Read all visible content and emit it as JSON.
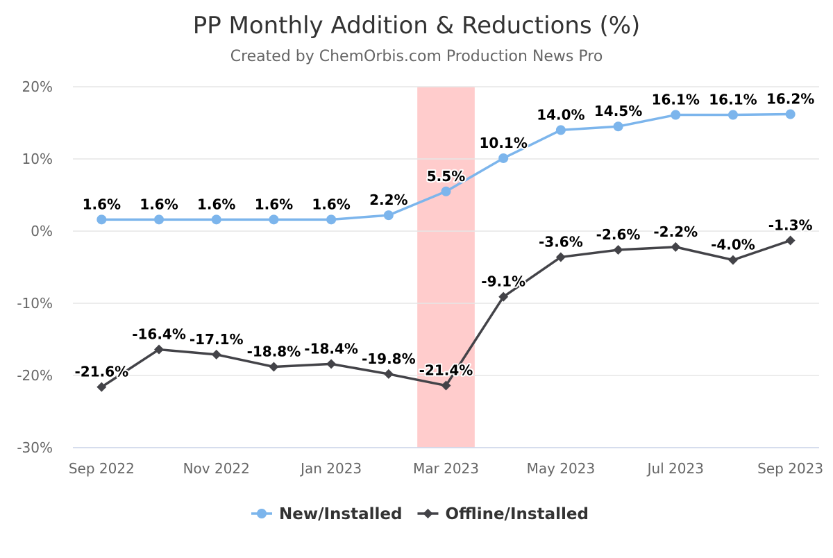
{
  "chart_data": {
    "type": "line",
    "title": "PP Monthly Addition & Reductions (%)",
    "subtitle": "Created by ChemOrbis.com Production News Pro",
    "categories": [
      "Sep 2022",
      "Oct 2022",
      "Nov 2022",
      "Dec 2022",
      "Jan 2023",
      "Feb 2023",
      "Mar 2023",
      "Apr 2023",
      "May 2023",
      "Jun 2023",
      "Jul 2023",
      "Aug 2023",
      "Sep 2023"
    ],
    "x_tick_labels": [
      "Sep 2022",
      "",
      "Nov 2022",
      "",
      "Jan 2023",
      "",
      "Mar 2023",
      "",
      "May 2023",
      "",
      "Jul 2023",
      "",
      "Sep 2023"
    ],
    "ylim": [
      -30,
      20
    ],
    "y_ticks": [
      20,
      10,
      0,
      -10,
      -20,
      -30
    ],
    "y_tick_labels": [
      "20%",
      "10%",
      "0%",
      "-10%",
      "-20%",
      "-30%"
    ],
    "grid": true,
    "legend_position": "bottom-center",
    "highlight_band": {
      "category": "Mar 2023",
      "color": "#ffcccc"
    },
    "series": [
      {
        "name": "New/Installed",
        "color": "#7cb5ec",
        "marker": "circle",
        "values": [
          1.6,
          1.6,
          1.6,
          1.6,
          1.6,
          2.2,
          5.5,
          10.1,
          14.0,
          14.5,
          16.1,
          16.1,
          16.2
        ],
        "labels": [
          "1.6%",
          "1.6%",
          "1.6%",
          "1.6%",
          "1.6%",
          "2.2%",
          "5.5%",
          "10.1%",
          "14.0%",
          "14.5%",
          "16.1%",
          "16.1%",
          "16.2%"
        ]
      },
      {
        "name": "Offline/Installed",
        "color": "#434348",
        "marker": "diamond",
        "values": [
          -21.6,
          -16.4,
          -17.1,
          -18.8,
          -18.4,
          -19.8,
          -21.4,
          -9.1,
          -3.6,
          -2.6,
          -2.2,
          -4.0,
          -1.3
        ],
        "labels": [
          "-21.6%",
          "-16.4%",
          "-17.1%",
          "-18.8%",
          "-18.4%",
          "-19.8%",
          "-21.4%",
          "-9.1%",
          "-3.6%",
          "-2.6%",
          "-2.2%",
          "-4.0%",
          "-1.3%"
        ]
      }
    ]
  }
}
